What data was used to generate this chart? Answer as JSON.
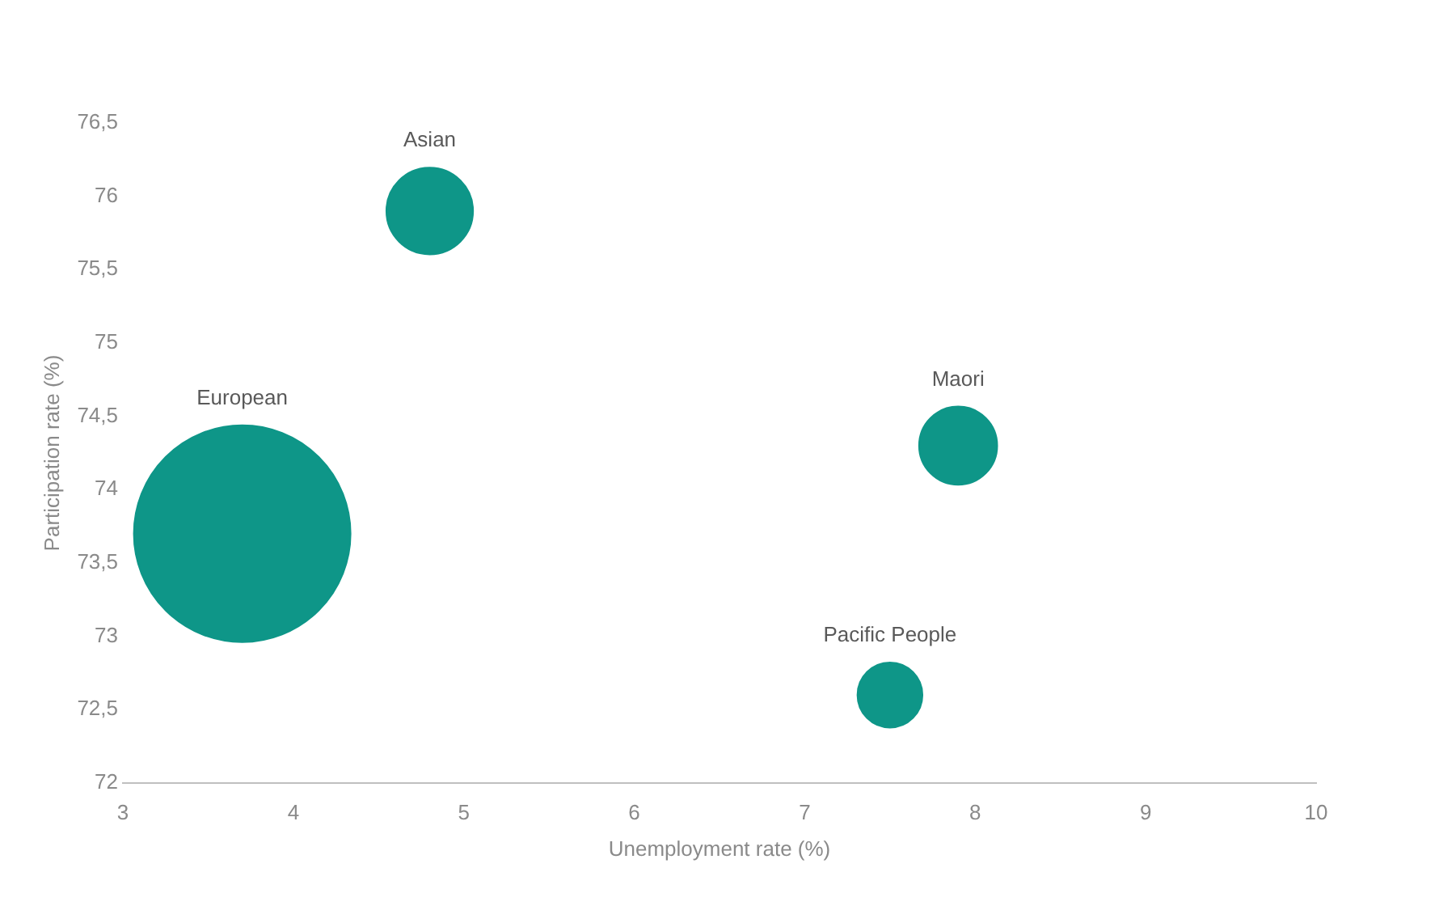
{
  "chart_data": {
    "type": "bubble",
    "xlabel": "Unemployment rate (%)",
    "ylabel": "Participation rate (%)",
    "series": [
      {
        "name": "European",
        "color": "#0e9688",
        "x": [
          3.7
        ],
        "values": [
          73.7
        ],
        "sizes": [
          1
        ]
      },
      {
        "name": "Asian",
        "color": "#0e9688",
        "x": [
          4.8
        ],
        "values": [
          75.9
        ],
        "sizes": [
          0.16
        ]
      },
      {
        "name": "Maori",
        "color": "#0e9688",
        "x": [
          7.9
        ],
        "values": [
          74.3
        ],
        "sizes": [
          0.13
        ]
      },
      {
        "name": "Pacific People",
        "color": "#0e9688",
        "x": [
          7.5
        ],
        "values": [
          72.6
        ],
        "sizes": [
          0.09
        ]
      }
    ],
    "xlim": [
      3,
      10
    ],
    "xticks": [
      3,
      4,
      5,
      6,
      7,
      8,
      9,
      10
    ],
    "ylim": [
      72,
      76.5
    ],
    "yticks": [
      72,
      {
        "value": 72.5,
        "label": "72,5"
      },
      73,
      {
        "value": 73.5,
        "label": "73,5"
      },
      74,
      {
        "value": 74.5,
        "label": "74,5"
      },
      75,
      {
        "value": 75.5,
        "label": "75,5"
      },
      76,
      {
        "value": 76.5,
        "label": "76,5"
      }
    ],
    "grid": false,
    "legend": false
  }
}
